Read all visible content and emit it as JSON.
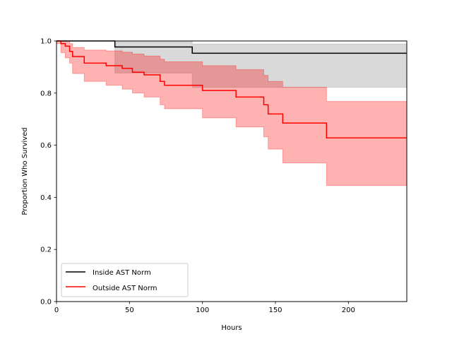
{
  "chart_data": {
    "type": "line",
    "subtype": "step-survival-with-confidence-bands",
    "xlabel": "Hours",
    "ylabel": "Proportion Who Survived",
    "xlim": [
      0,
      240
    ],
    "ylim": [
      0.0,
      1.0
    ],
    "xticks": [
      0,
      50,
      100,
      150,
      200
    ],
    "yticks": [
      0.0,
      0.2,
      0.4,
      0.6,
      0.8,
      1.0
    ],
    "xtick_labels": [
      "0",
      "50",
      "100",
      "150",
      "200"
    ],
    "ytick_labels": [
      "0.0",
      "0.2",
      "0.4",
      "0.6",
      "0.8",
      "1.0"
    ],
    "grid": false,
    "legend_position": "lower-left",
    "series": [
      {
        "name": "Inside AST Norm",
        "color": "#000000",
        "band_color": "#808080",
        "steps": [
          [
            0,
            1.0
          ],
          [
            40,
            0.977
          ],
          [
            93,
            0.953
          ],
          [
            240,
            0.953
          ]
        ],
        "band": [
          [
            0,
            1.0,
            1.0
          ],
          [
            40,
            0.877,
            0.997
          ],
          [
            93,
            0.822,
            0.988
          ],
          [
            240,
            0.822,
            0.988
          ]
        ]
      },
      {
        "name": "Outside AST Norm",
        "color": "#ff0000",
        "band_color": "#ff0000",
        "steps": [
          [
            0,
            1.0
          ],
          [
            3,
            0.99
          ],
          [
            6,
            0.98
          ],
          [
            9,
            0.96
          ],
          [
            11,
            0.94
          ],
          [
            19,
            0.915
          ],
          [
            34,
            0.905
          ],
          [
            45,
            0.895
          ],
          [
            52,
            0.88
          ],
          [
            60,
            0.87
          ],
          [
            71,
            0.845
          ],
          [
            74,
            0.83
          ],
          [
            100,
            0.81
          ],
          [
            123,
            0.785
          ],
          [
            142,
            0.755
          ],
          [
            145,
            0.72
          ],
          [
            155,
            0.685
          ],
          [
            185,
            0.628
          ],
          [
            240,
            0.628
          ]
        ],
        "band": [
          [
            0,
            0.99,
            1.0
          ],
          [
            3,
            0.955,
            1.0
          ],
          [
            6,
            0.935,
            1.0
          ],
          [
            9,
            0.915,
            0.99
          ],
          [
            11,
            0.875,
            0.975
          ],
          [
            19,
            0.845,
            0.965
          ],
          [
            34,
            0.83,
            0.962
          ],
          [
            45,
            0.815,
            0.957
          ],
          [
            52,
            0.8,
            0.95
          ],
          [
            60,
            0.785,
            0.942
          ],
          [
            71,
            0.755,
            0.93
          ],
          [
            74,
            0.74,
            0.92
          ],
          [
            100,
            0.705,
            0.905
          ],
          [
            123,
            0.67,
            0.89
          ],
          [
            142,
            0.632,
            0.868
          ],
          [
            145,
            0.585,
            0.845
          ],
          [
            155,
            0.532,
            0.822
          ],
          [
            185,
            0.445,
            0.768
          ],
          [
            240,
            0.445,
            0.768
          ]
        ]
      }
    ]
  }
}
